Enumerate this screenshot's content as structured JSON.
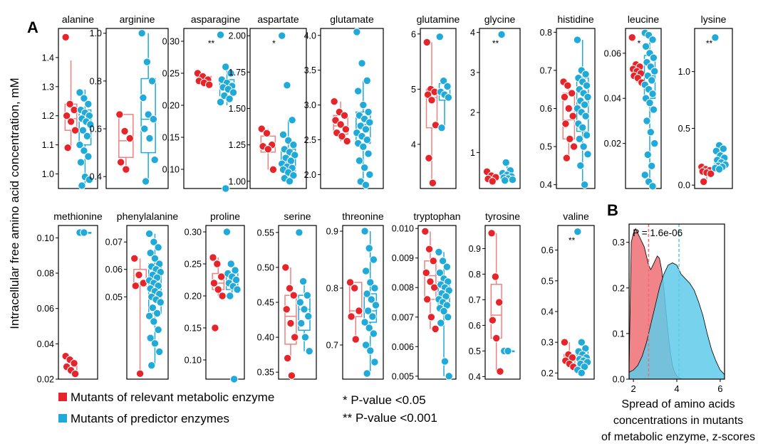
{
  "figure": {
    "panel_a_label": "A",
    "panel_b_label": "B",
    "y_axis_title": "Intracellular free amino acid concentration, mM",
    "legend": [
      {
        "label": "Mutants of relevant metabolic enzyme",
        "color": "#e8242b"
      },
      {
        "label": "Mutants of predictor enzymes",
        "color": "#1faad9"
      }
    ],
    "significance_notes": [
      "* P-value <0.05",
      "** P-value <0.001"
    ],
    "colors": {
      "red": "#e8242b",
      "red_box": "#f08080",
      "blue": "#1faad9",
      "blue_box": "#1faad9",
      "density_red": "#ee6e73",
      "density_blue": "#5fcbea"
    }
  },
  "chart_data": [
    {
      "type": "box",
      "title": "alanine",
      "ylim": [
        0.95,
        1.5
      ],
      "ticks": [
        1.0,
        1.1,
        1.2,
        1.3,
        1.4
      ],
      "tick_labels": [
        "1.0",
        "1.1",
        "1.2",
        "1.3",
        "1.4"
      ],
      "sig": "",
      "red": [
        1.47,
        1.24,
        1.22,
        1.2,
        1.18,
        1.15,
        1.09
      ],
      "blue": [
        1.28,
        1.26,
        1.24,
        1.22,
        1.21,
        1.2,
        1.19,
        1.18,
        1.17,
        1.15,
        1.13,
        1.1,
        1.08,
        1.06,
        1.04,
        0.99,
        0.98,
        0.96
      ],
      "red_box": [
        1.09,
        1.15,
        1.19,
        1.24,
        1.39
      ],
      "blue_box": [
        0.96,
        1.1,
        1.18,
        1.22,
        1.29
      ]
    },
    {
      "type": "box",
      "title": "arginine",
      "ylim": [
        0.35,
        1.02
      ],
      "ticks": [
        0.4,
        0.6,
        0.8,
        1.0
      ],
      "tick_labels": [
        "0.4",
        "0.6",
        "0.8",
        "1.0"
      ],
      "sig": "",
      "red": [
        0.66,
        0.59,
        0.56,
        0.46,
        0.43
      ],
      "blue": [
        1.0,
        0.88,
        0.8,
        0.73,
        0.66,
        0.64,
        0.6,
        0.56,
        0.47,
        0.38
      ],
      "red_box": [
        0.43,
        0.48,
        0.55,
        0.66,
        0.66
      ],
      "blue_box": [
        0.38,
        0.5,
        0.64,
        0.81,
        1.0
      ]
    },
    {
      "type": "box",
      "title": "asparagine",
      "ylim": [
        0.07,
        0.32
      ],
      "ticks": [
        0.1,
        0.15,
        0.2,
        0.25,
        0.3
      ],
      "tick_labels": [
        "0.10",
        "0.15",
        "0.20",
        "0.25",
        "0.30"
      ],
      "sig": "**",
      "red": [
        0.25,
        0.245,
        0.24,
        0.238,
        0.235,
        0.232
      ],
      "blue": [
        0.31,
        0.26,
        0.25,
        0.24,
        0.235,
        0.23,
        0.228,
        0.225,
        0.22,
        0.215,
        0.21,
        0.205,
        0.07
      ],
      "red_box": [
        0.23,
        0.233,
        0.238,
        0.245,
        0.25
      ],
      "blue_box": [
        0.2,
        0.215,
        0.228,
        0.24,
        0.26
      ]
    },
    {
      "type": "box",
      "title": "aspartate",
      "ylim": [
        0.95,
        2.05
      ],
      "ticks": [
        1.0,
        1.25,
        1.5,
        1.75,
        2.0
      ],
      "tick_labels": [
        "1.00",
        "1.25",
        "1.50",
        "1.75",
        "2.00"
      ],
      "sig": "*",
      "red": [
        1.36,
        1.33,
        1.25,
        1.24,
        1.22,
        1.08
      ],
      "blue": [
        2.0,
        1.66,
        1.42,
        1.32,
        1.28,
        1.25,
        1.22,
        1.2,
        1.18,
        1.16,
        1.14,
        1.12,
        1.1,
        1.09,
        1.08,
        1.06,
        1.04,
        1.02,
        1.0
      ],
      "red_box": [
        1.08,
        1.2,
        1.24,
        1.31,
        1.36
      ],
      "blue_box": [
        1.0,
        1.07,
        1.13,
        1.22,
        1.42
      ]
    },
    {
      "type": "box",
      "title": "glutamate",
      "ylim": [
        1.8,
        4.1
      ],
      "ticks": [
        2.0,
        2.5,
        3.0,
        3.5,
        4.0
      ],
      "tick_labels": [
        "2.0",
        "2.5",
        "3.0",
        "3.5",
        "4.0"
      ],
      "sig": "",
      "red": [
        3.05,
        2.9,
        2.85,
        2.78,
        2.72,
        2.65,
        2.6,
        2.55,
        2.48
      ],
      "blue": [
        4.05,
        3.6,
        3.35,
        3.2,
        3.0,
        2.9,
        2.85,
        2.8,
        2.75,
        2.7,
        2.65,
        2.6,
        2.55,
        2.5,
        2.45,
        2.4,
        2.3,
        2.2,
        2.1,
        2.0,
        1.9,
        1.85
      ],
      "red_box": [
        2.48,
        2.58,
        2.7,
        2.85,
        3.05
      ],
      "blue_box": [
        1.85,
        2.45,
        2.72,
        2.9,
        3.35
      ]
    },
    {
      "type": "box",
      "title": "glutamine",
      "ylim": [
        3.2,
        6.1
      ],
      "ticks": [
        4,
        5,
        6
      ],
      "tick_labels": [
        "4",
        "5",
        "6"
      ],
      "sig": "",
      "red": [
        5.85,
        5.0,
        4.95,
        4.9,
        4.8,
        4.35,
        3.75,
        3.3
      ],
      "blue": [
        5.95,
        5.15,
        5.05,
        4.95,
        4.9,
        4.85,
        4.3
      ],
      "red_box": [
        3.3,
        4.3,
        4.85,
        5.0,
        5.85
      ],
      "blue_box": [
        4.3,
        4.8,
        4.9,
        5.1,
        5.15
      ]
    },
    {
      "type": "box",
      "title": "glycine",
      "ylim": [
        0.1,
        4.1
      ],
      "ticks": [
        1,
        2,
        3,
        4
      ],
      "tick_labels": [
        "1",
        "2",
        "3",
        "4"
      ],
      "sig": "**",
      "red": [
        0.52,
        0.42,
        0.38,
        0.34,
        0.28
      ],
      "blue": [
        3.95,
        0.75,
        0.55,
        0.48,
        0.44,
        0.4,
        0.37,
        0.35,
        0.32,
        0.3
      ],
      "red_box": [
        0.28,
        0.35,
        0.38,
        0.45,
        0.52
      ],
      "blue_box": [
        0.3,
        0.35,
        0.4,
        0.5,
        0.75
      ]
    },
    {
      "type": "box",
      "title": "histidine",
      "ylim": [
        0.39,
        0.81
      ],
      "ticks": [
        0.4,
        0.5,
        0.6,
        0.7,
        0.8
      ],
      "tick_labels": [
        "0.4",
        "0.5",
        "0.6",
        "0.7",
        "0.8"
      ],
      "sig": "",
      "red": [
        0.67,
        0.66,
        0.64,
        0.63,
        0.6,
        0.58,
        0.56,
        0.52,
        0.5,
        0.47
      ],
      "blue": [
        0.78,
        0.7,
        0.69,
        0.68,
        0.67,
        0.66,
        0.65,
        0.64,
        0.63,
        0.62,
        0.61,
        0.6,
        0.59,
        0.58,
        0.56,
        0.55,
        0.53,
        0.52,
        0.5,
        0.48,
        0.45,
        0.4
      ],
      "red_box": [
        0.47,
        0.52,
        0.57,
        0.64,
        0.67
      ],
      "blue_box": [
        0.4,
        0.54,
        0.61,
        0.68,
        0.78
      ]
    },
    {
      "type": "box",
      "title": "leucine",
      "ylim": [
        0.0,
        0.071
      ],
      "ticks": [
        0.02,
        0.04,
        0.06
      ],
      "tick_labels": [
        "0.02",
        "0.04",
        "0.06"
      ],
      "sig": "*",
      "red": [
        0.067,
        0.055,
        0.054,
        0.053,
        0.052,
        0.051,
        0.05,
        0.049,
        0.047
      ],
      "blue": [
        0.069,
        0.068,
        0.066,
        0.063,
        0.06,
        0.058,
        0.056,
        0.054,
        0.052,
        0.05,
        0.048,
        0.046,
        0.044,
        0.042,
        0.04,
        0.038,
        0.035,
        0.03,
        0.025,
        0.02,
        0.015,
        0.01,
        0.006,
        0.003,
        0.001
      ],
      "red_box": [
        0.047,
        0.05,
        0.052,
        0.054,
        0.055
      ],
      "blue_box": [
        0.001,
        0.04,
        0.05,
        0.059,
        0.069
      ]
    },
    {
      "type": "box",
      "title": "lysine",
      "ylim": [
        -0.03,
        1.38
      ],
      "ticks": [
        0.0,
        0.5,
        1.0
      ],
      "tick_labels": [
        "0.0",
        "0.5",
        "1.0"
      ],
      "sig": "**",
      "red": [
        0.16,
        0.14,
        0.13,
        0.12,
        0.11,
        0.1,
        0.03
      ],
      "blue": [
        1.3,
        0.35,
        0.32,
        0.3,
        0.26,
        0.24,
        0.22,
        0.2,
        0.18,
        0.17,
        0.16,
        0.15,
        0.14
      ],
      "red_box": [
        0.03,
        0.1,
        0.12,
        0.14,
        0.16
      ],
      "blue_box": [
        0.14,
        0.15,
        0.18,
        0.24,
        0.35
      ]
    },
    {
      "type": "box",
      "title": "methionine",
      "ylim": [
        0.02,
        0.107
      ],
      "ticks": [
        0.02,
        0.04,
        0.06,
        0.08,
        0.1
      ],
      "tick_labels": [
        "0.02",
        "0.04",
        "0.06",
        "0.08",
        "0.10"
      ],
      "sig": "",
      "red": [
        0.033,
        0.031,
        0.029,
        0.027,
        0.025,
        0.023
      ],
      "blue": [
        0.103,
        0.103
      ],
      "red_box": [
        0.023,
        0.025,
        0.027,
        0.029,
        0.033
      ],
      "blue_box": [
        0.103,
        0.103,
        0.103,
        0.103,
        0.103
      ]
    },
    {
      "type": "box",
      "title": "phenylalanine",
      "ylim": [
        0.02,
        0.076
      ],
      "ticks": [
        0.05,
        0.06,
        0.07
      ],
      "tick_labels": [
        "0.05",
        "0.06",
        "0.07"
      ],
      "sig": "",
      "red": [
        0.064,
        0.058,
        0.055,
        0.054,
        0.022
      ],
      "blue": [
        0.073,
        0.07,
        0.068,
        0.066,
        0.064,
        0.062,
        0.061,
        0.06,
        0.059,
        0.058,
        0.057,
        0.056,
        0.055,
        0.054,
        0.053,
        0.052,
        0.051,
        0.05,
        0.049,
        0.048,
        0.046,
        0.044,
        0.043,
        0.041,
        0.038,
        0.035,
        0.033,
        0.03,
        0.025
      ],
      "red_box": [
        0.022,
        0.054,
        0.055,
        0.06,
        0.064
      ],
      "blue_box": [
        0.025,
        0.044,
        0.055,
        0.062,
        0.073
      ]
    },
    {
      "type": "box",
      "title": "proline",
      "ylim": [
        0.07,
        0.31
      ],
      "ticks": [
        0.1,
        0.15,
        0.2,
        0.25,
        0.3
      ],
      "tick_labels": [
        "0.10",
        "0.15",
        "0.20",
        "0.25",
        "0.30"
      ],
      "sig": "",
      "red": [
        0.26,
        0.25,
        0.23,
        0.22,
        0.21,
        0.2,
        0.15
      ],
      "blue": [
        0.3,
        0.25,
        0.24,
        0.235,
        0.23,
        0.225,
        0.22,
        0.215,
        0.21,
        0.2,
        0.07
      ],
      "red_box": [
        0.2,
        0.21,
        0.22,
        0.235,
        0.26
      ],
      "blue_box": [
        0.2,
        0.21,
        0.22,
        0.235,
        0.25
      ]
    },
    {
      "type": "box",
      "title": "serine",
      "ylim": [
        0.34,
        0.56
      ],
      "ticks": [
        0.35,
        0.4,
        0.45,
        0.5,
        0.55
      ],
      "tick_labels": [
        "0.35",
        "0.40",
        "0.45",
        "0.50",
        "0.55"
      ],
      "sig": "",
      "red": [
        0.5,
        0.47,
        0.46,
        0.44,
        0.42,
        0.4,
        0.37,
        0.345
      ],
      "blue": [
        0.55,
        0.48,
        0.46,
        0.45,
        0.44,
        0.43,
        0.42,
        0.4,
        0.38
      ],
      "red_box": [
        0.37,
        0.39,
        0.43,
        0.46,
        0.5
      ],
      "blue_box": [
        0.38,
        0.41,
        0.44,
        0.46,
        0.48
      ]
    },
    {
      "type": "box",
      "title": "threonine",
      "ylim": [
        0.64,
        0.91
      ],
      "ticks": [
        0.7,
        0.8,
        0.9
      ],
      "tick_labels": [
        "0.7",
        "0.8",
        "0.9"
      ],
      "sig": "",
      "red": [
        0.81,
        0.8,
        0.76,
        0.75,
        0.71
      ],
      "blue": [
        0.9,
        0.87,
        0.85,
        0.83,
        0.81,
        0.8,
        0.79,
        0.78,
        0.77,
        0.76,
        0.75,
        0.74,
        0.73,
        0.72,
        0.7,
        0.69,
        0.67,
        0.65
      ],
      "red_box": [
        0.71,
        0.75,
        0.76,
        0.81,
        0.81
      ],
      "blue_box": [
        0.65,
        0.74,
        0.76,
        0.79,
        0.9
      ]
    },
    {
      "type": "box",
      "title": "tryptophan",
      "ylim": [
        0.0049,
        0.0101
      ],
      "ticks": [
        0.005,
        0.006,
        0.007,
        0.008,
        0.009,
        0.01
      ],
      "tick_labels": [
        "0.005",
        "0.006",
        "0.007",
        "0.008",
        "0.009",
        "0.010"
      ],
      "sig": "",
      "red": [
        0.0099,
        0.0093,
        0.0089,
        0.0085,
        0.0082,
        0.008,
        0.0076,
        0.007,
        0.0066
      ],
      "blue": [
        0.0092,
        0.0089,
        0.0087,
        0.0085,
        0.0083,
        0.0082,
        0.0081,
        0.008,
        0.0079,
        0.0078,
        0.0077,
        0.0076,
        0.0075,
        0.0074,
        0.0073,
        0.0072,
        0.007,
        0.0068,
        0.0055,
        0.005
      ],
      "red_box": [
        0.0066,
        0.0076,
        0.0084,
        0.0089,
        0.0099
      ],
      "blue_box": [
        0.005,
        0.0074,
        0.0078,
        0.0082,
        0.0092
      ]
    },
    {
      "type": "box",
      "title": "tyrosine",
      "ylim": [
        0.39,
        0.99
      ],
      "ticks": [
        0.4,
        0.5,
        0.6,
        0.7,
        0.8,
        0.9
      ],
      "tick_labels": [
        "0.4",
        "0.5",
        "0.6",
        "0.7",
        "0.8",
        "0.9"
      ],
      "sig": "",
      "red": [
        0.96,
        0.79,
        0.69,
        0.62,
        0.55,
        0.42
      ],
      "blue": [
        0.5,
        0.5
      ],
      "red_box": [
        0.42,
        0.55,
        0.64,
        0.76,
        0.96
      ],
      "blue_box": [
        0.5,
        0.5,
        0.5,
        0.5,
        0.5
      ]
    },
    {
      "type": "box",
      "title": "valine",
      "ylim": [
        0.18,
        0.68
      ],
      "ticks": [
        0.2,
        0.3,
        0.4,
        0.5,
        0.6
      ],
      "tick_labels": [
        "0.2",
        "0.3",
        "0.4",
        "0.5",
        "0.6"
      ],
      "sig": "**",
      "red": [
        0.3,
        0.26,
        0.25,
        0.24,
        0.23,
        0.22
      ],
      "blue": [
        0.66,
        0.3,
        0.28,
        0.27,
        0.26,
        0.25,
        0.245,
        0.24,
        0.235,
        0.23,
        0.22,
        0.21,
        0.2
      ],
      "red_box": [
        0.22,
        0.23,
        0.245,
        0.26,
        0.3
      ],
      "blue_box": [
        0.2,
        0.23,
        0.245,
        0.27,
        0.3
      ]
    },
    {
      "type": "area",
      "title": "",
      "annotation": "P = 1.6e-06",
      "xlabel": "Spread of amino acids concentrations in mutants of metabolic enzyme, z-scores",
      "xlabel_lines": [
        "Spread of amino acids",
        "concentrations in mutants",
        "of metabolic enzyme, z-scores"
      ],
      "xlim": [
        1.8,
        6.2
      ],
      "ylim": [
        0.0,
        0.34
      ],
      "x_ticks": [
        2,
        4,
        6
      ],
      "x_tick_labels": [
        "2",
        "4",
        "6"
      ],
      "y_ticks": [
        0.0,
        0.1,
        0.2,
        0.3
      ],
      "y_tick_labels": [
        "0.0",
        "0.1",
        "0.2",
        "0.3"
      ],
      "series": [
        {
          "color": "#ee6e73",
          "x": [
            1.8,
            1.9,
            2.0,
            2.1,
            2.2,
            2.3,
            2.4,
            2.5,
            2.6,
            2.7,
            2.8,
            2.9,
            3.0,
            3.1,
            3.2,
            3.3,
            3.4,
            3.5,
            3.6,
            3.7,
            3.8,
            3.9,
            4.0,
            4.1,
            4.2,
            4.3
          ],
          "y": [
            0.02,
            0.3,
            0.32,
            0.33,
            0.32,
            0.31,
            0.3,
            0.29,
            0.27,
            0.25,
            0.24,
            0.25,
            0.26,
            0.27,
            0.265,
            0.24,
            0.2,
            0.15,
            0.1,
            0.06,
            0.03,
            0.015,
            0.007,
            0.003,
            0.001,
            0.0
          ],
          "mean": 2.7
        },
        {
          "color": "#5fcbea",
          "x": [
            1.8,
            2.0,
            2.2,
            2.4,
            2.6,
            2.8,
            3.0,
            3.2,
            3.4,
            3.6,
            3.8,
            4.0,
            4.2,
            4.4,
            4.6,
            4.8,
            5.0,
            5.2,
            5.4,
            5.6,
            5.8,
            6.0,
            6.2
          ],
          "y": [
            0.015,
            0.02,
            0.03,
            0.05,
            0.08,
            0.12,
            0.16,
            0.2,
            0.23,
            0.25,
            0.255,
            0.25,
            0.23,
            0.22,
            0.21,
            0.195,
            0.17,
            0.14,
            0.1,
            0.065,
            0.04,
            0.02,
            0.01
          ],
          "mean": 4.1
        }
      ]
    }
  ]
}
